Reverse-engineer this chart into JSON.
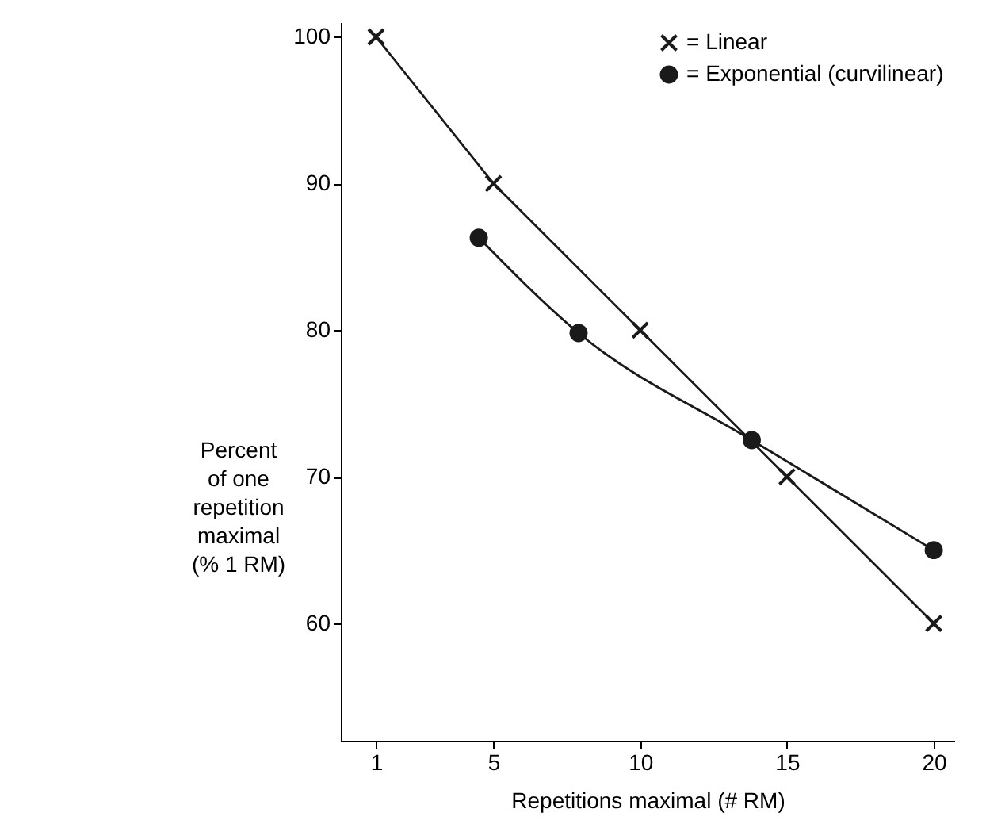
{
  "chart_data": {
    "type": "line",
    "xlabel": "Repetitions maximal (# RM)",
    "ylabel": "Percent\nof one\nrepetition\nmaximal\n(% 1 RM)",
    "xlim": [
      -0.2,
      20.7
    ],
    "xticks": [
      1,
      5,
      10,
      15,
      20
    ],
    "ylim": [
      52,
      101
    ],
    "yticks": [
      60,
      70,
      80,
      90,
      100
    ],
    "grid": false,
    "legend": "top right",
    "series": [
      {
        "name": "= Linear",
        "color": "#1a1a1a",
        "marker": "cross",
        "x": [
          1,
          5,
          10,
          15,
          20
        ],
        "values": [
          100,
          90,
          80,
          70,
          60
        ]
      },
      {
        "name": "= Exponential (curvilinear)",
        "color": "#1a1a1a",
        "marker": "circle",
        "x": [
          4.5,
          7.9,
          13.8,
          20
        ],
        "values": [
          86.3,
          79.8,
          72.5,
          65
        ]
      }
    ]
  }
}
